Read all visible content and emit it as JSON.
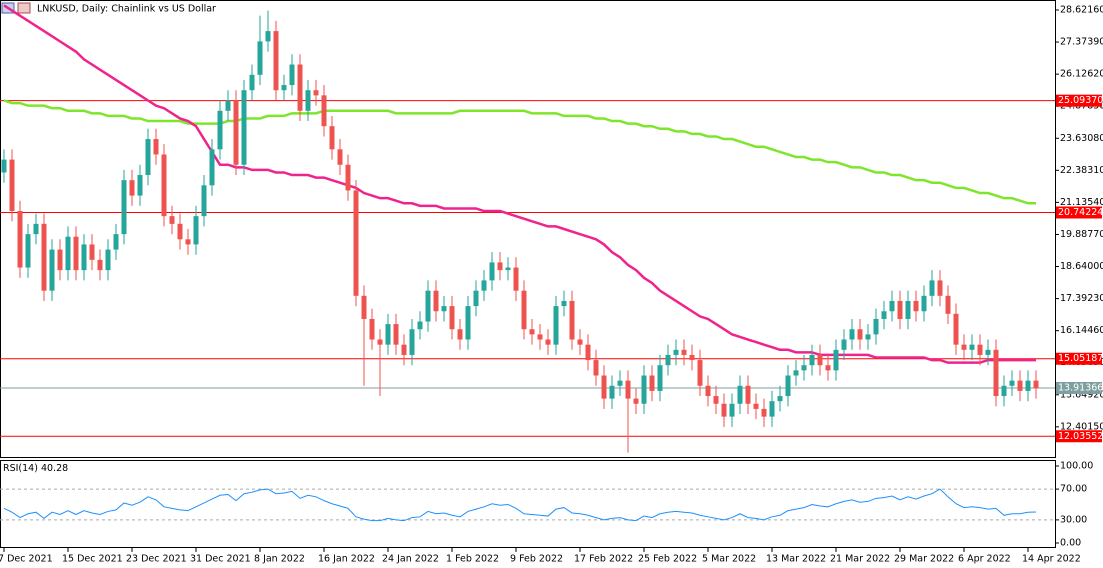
{
  "chart_data": [
    {
      "type": "candlestick",
      "title": "LNKUSD, Daily:  Chainlink vs US Dollar",
      "up_color": "#26a69a",
      "down_color": "#ef5350",
      "categories": [
        "7 Dec 2021",
        null,
        null,
        null,
        null,
        null,
        null,
        null,
        "15 Dec 2021",
        null,
        null,
        null,
        null,
        null,
        null,
        null,
        "23 Dec 2021",
        null,
        null,
        null,
        null,
        null,
        null,
        null,
        "31 Dec 2021",
        null,
        null,
        null,
        null,
        null,
        null,
        null,
        "8 Jan 2022",
        null,
        null,
        null,
        null,
        null,
        null,
        null,
        "16 Jan 2022",
        null,
        null,
        null,
        null,
        null,
        null,
        null,
        "24 Jan 2022",
        null,
        null,
        null,
        null,
        null,
        null,
        null,
        "1 Feb 2022",
        null,
        null,
        null,
        null,
        null,
        null,
        null,
        "9 Feb 2022",
        null,
        null,
        null,
        null,
        null,
        null,
        null,
        "17 Feb 2022",
        null,
        null,
        null,
        null,
        null,
        null,
        null,
        "25 Feb 2022",
        null,
        null,
        null,
        null,
        null,
        null,
        null,
        "5 Mar 2022",
        null,
        null,
        null,
        null,
        null,
        null,
        null,
        "13 Mar 2022",
        null,
        null,
        null,
        null,
        null,
        null,
        null,
        "21 Mar 2022",
        null,
        null,
        null,
        null,
        null,
        null,
        null,
        "29 Mar 2022",
        null,
        null,
        null,
        null,
        null,
        null,
        null,
        "6 Apr 2022",
        null,
        null,
        null,
        null,
        null,
        null,
        null,
        "14 Apr 2022",
        null
      ],
      "open": [
        22.3,
        22.8,
        20.8,
        18.6,
        19.9,
        20.3,
        17.7,
        19.3,
        18.5,
        19.8,
        18.5,
        19.5,
        18.9,
        18.5,
        19.3,
        19.9,
        22.0,
        21.4,
        22.2,
        23.6,
        23.0,
        20.6,
        20.3,
        19.7,
        19.5,
        20.6,
        21.8,
        23.2,
        24.7,
        25.1,
        22.6,
        25.5,
        26.1,
        27.4,
        27.8,
        25.5,
        25.7,
        26.5,
        24.7,
        25.5,
        25.3,
        24.1,
        23.2,
        22.6,
        21.6,
        17.5,
        16.6,
        15.8,
        15.6,
        16.4,
        15.6,
        15.2,
        16.2,
        16.5,
        17.7,
        16.9,
        17.1,
        16.2,
        15.8,
        17.1,
        17.7,
        18.1,
        18.8,
        18.5,
        18.6,
        17.7,
        16.2,
        16.0,
        15.8,
        15.6,
        17.1,
        17.3,
        15.8,
        15.6,
        15.0,
        14.4,
        13.5,
        14.0,
        14.2,
        13.5,
        13.3,
        14.4,
        13.8,
        14.8,
        15.2,
        15.4,
        15.2,
        15.0,
        14.0,
        13.6,
        13.3,
        12.8,
        13.3,
        14.0,
        13.3,
        13.1,
        12.8,
        13.4,
        13.6,
        14.4,
        14.6,
        14.8,
        15.2,
        14.8,
        14.6,
        15.4,
        15.8,
        16.2,
        15.8,
        16.0,
        16.6,
        16.9,
        17.3,
        16.6,
        17.3,
        16.9,
        17.5,
        18.1,
        17.5,
        16.8,
        15.6,
        15.4,
        15.6,
        15.2,
        15.4,
        13.6,
        14.0,
        14.2,
        13.8,
        14.2
      ],
      "high": [
        23.2,
        23.2,
        21.2,
        20.3,
        20.7,
        20.7,
        19.7,
        19.7,
        20.2,
        20.2,
        19.9,
        19.9,
        19.3,
        19.7,
        20.3,
        22.4,
        22.4,
        22.6,
        24.0,
        24.0,
        23.4,
        21.0,
        20.7,
        20.1,
        21.0,
        22.2,
        23.6,
        25.1,
        25.5,
        25.5,
        25.9,
        26.5,
        28.4,
        28.6,
        28.2,
        26.1,
        26.9,
        26.9,
        25.9,
        25.9,
        25.7,
        24.5,
        23.6,
        23.0,
        22.0,
        17.9,
        17.0,
        16.2,
        16.8,
        16.8,
        16.0,
        16.6,
        16.9,
        18.1,
        18.1,
        17.5,
        17.5,
        16.6,
        17.5,
        18.1,
        18.5,
        19.2,
        19.2,
        19.0,
        19.0,
        18.1,
        16.6,
        16.4,
        16.2,
        17.5,
        17.7,
        17.7,
        16.2,
        16.0,
        15.4,
        14.8,
        14.4,
        14.6,
        14.6,
        13.9,
        14.8,
        14.8,
        15.2,
        15.6,
        15.8,
        15.8,
        15.6,
        15.4,
        14.4,
        14.0,
        13.7,
        13.7,
        14.4,
        14.4,
        13.7,
        13.5,
        13.8,
        14.0,
        14.8,
        15.0,
        15.2,
        15.6,
        15.6,
        15.2,
        15.8,
        16.2,
        16.6,
        16.6,
        16.4,
        17.0,
        17.3,
        17.7,
        17.7,
        17.7,
        17.7,
        17.9,
        18.5,
        18.5,
        17.9,
        17.2,
        16.0,
        16.0,
        16.0,
        15.8,
        15.8,
        14.4,
        14.6,
        14.6,
        14.6,
        14.6
      ],
      "low": [
        21.9,
        20.4,
        18.2,
        18.2,
        19.5,
        17.3,
        17.3,
        18.1,
        18.1,
        18.1,
        18.1,
        18.5,
        18.1,
        18.1,
        18.9,
        19.5,
        21.0,
        21.0,
        21.8,
        22.6,
        20.2,
        19.9,
        19.3,
        19.1,
        19.1,
        20.2,
        21.4,
        22.8,
        24.3,
        22.2,
        22.2,
        25.1,
        25.7,
        27.0,
        25.1,
        25.1,
        25.3,
        24.3,
        24.3,
        24.9,
        23.7,
        22.8,
        22.2,
        21.2,
        17.1,
        14.0,
        15.4,
        13.6,
        15.2,
        15.2,
        14.8,
        14.8,
        15.8,
        16.1,
        16.5,
        16.5,
        15.8,
        15.4,
        15.4,
        16.7,
        17.3,
        17.7,
        18.1,
        18.1,
        17.3,
        15.8,
        15.6,
        15.4,
        15.2,
        15.2,
        16.7,
        15.4,
        15.2,
        14.6,
        14.0,
        13.1,
        13.1,
        13.6,
        11.4,
        12.9,
        12.9,
        13.4,
        13.4,
        14.4,
        14.8,
        14.8,
        14.6,
        13.6,
        13.2,
        12.9,
        12.4,
        12.4,
        12.9,
        12.9,
        12.7,
        12.4,
        12.4,
        13.0,
        13.2,
        14.0,
        14.2,
        14.4,
        14.4,
        14.2,
        14.2,
        15.0,
        15.4,
        15.4,
        15.4,
        15.6,
        16.2,
        16.5,
        16.2,
        16.2,
        16.5,
        16.5,
        17.1,
        17.1,
        16.4,
        15.2,
        15.0,
        15.0,
        14.8,
        14.8,
        13.2,
        13.2,
        13.6,
        13.4,
        13.4,
        13.5
      ],
      "close": [
        22.8,
        20.8,
        18.6,
        19.9,
        20.3,
        17.7,
        19.3,
        18.5,
        19.8,
        18.5,
        19.5,
        18.9,
        18.5,
        19.3,
        19.9,
        22.0,
        21.4,
        22.2,
        23.6,
        23.0,
        20.6,
        20.3,
        19.7,
        19.5,
        20.6,
        21.8,
        23.2,
        24.7,
        25.1,
        22.6,
        25.5,
        26.1,
        27.4,
        27.8,
        25.5,
        25.7,
        26.5,
        24.7,
        25.5,
        25.3,
        24.1,
        23.2,
        22.6,
        21.6,
        17.5,
        16.6,
        15.8,
        15.6,
        16.4,
        15.6,
        15.2,
        16.2,
        16.5,
        17.7,
        16.9,
        17.1,
        16.2,
        15.8,
        17.1,
        17.7,
        18.1,
        18.8,
        18.5,
        18.6,
        17.7,
        16.2,
        16.0,
        15.8,
        15.6,
        17.1,
        17.3,
        15.8,
        15.6,
        15.0,
        14.4,
        13.5,
        14.0,
        14.2,
        13.5,
        13.3,
        14.4,
        13.8,
        14.8,
        15.2,
        15.4,
        15.2,
        15.0,
        14.0,
        13.6,
        13.3,
        12.8,
        13.3,
        14.0,
        13.3,
        13.1,
        12.8,
        13.4,
        13.6,
        14.4,
        14.6,
        14.8,
        15.2,
        14.8,
        14.6,
        15.4,
        15.8,
        16.2,
        15.8,
        16.0,
        16.6,
        16.9,
        17.3,
        16.6,
        17.3,
        16.9,
        17.5,
        18.1,
        17.5,
        16.8,
        15.6,
        15.4,
        15.6,
        15.2,
        15.4,
        13.6,
        14.0,
        14.2,
        13.8,
        14.2,
        13.9
      ],
      "overlays": [
        {
          "color": "#7fe52a",
          "values": [
            25.1,
            25.0,
            25.0,
            24.9,
            24.9,
            24.9,
            24.8,
            24.8,
            24.7,
            24.7,
            24.7,
            24.6,
            24.6,
            24.5,
            24.5,
            24.5,
            24.4,
            24.4,
            24.3,
            24.3,
            24.3,
            24.3,
            24.3,
            24.2,
            24.2,
            24.2,
            24.2,
            24.2,
            24.3,
            24.3,
            24.4,
            24.4,
            24.4,
            24.5,
            24.5,
            24.5,
            24.6,
            24.6,
            24.6,
            24.6,
            24.7,
            24.7,
            24.7,
            24.7,
            24.7,
            24.7,
            24.7,
            24.7,
            24.7,
            24.6,
            24.6,
            24.6,
            24.6,
            24.6,
            24.6,
            24.6,
            24.6,
            24.7,
            24.7,
            24.7,
            24.7,
            24.7,
            24.7,
            24.7,
            24.7,
            24.7,
            24.6,
            24.6,
            24.6,
            24.6,
            24.5,
            24.5,
            24.5,
            24.5,
            24.4,
            24.4,
            24.3,
            24.3,
            24.2,
            24.2,
            24.1,
            24.1,
            24.0,
            24.0,
            23.9,
            23.9,
            23.8,
            23.8,
            23.7,
            23.7,
            23.6,
            23.6,
            23.5,
            23.4,
            23.3,
            23.3,
            23.2,
            23.1,
            23.0,
            22.9,
            22.9,
            22.8,
            22.8,
            22.7,
            22.7,
            22.6,
            22.5,
            22.5,
            22.4,
            22.3,
            22.3,
            22.2,
            22.2,
            22.1,
            22.0,
            22.0,
            21.9,
            21.9,
            21.8,
            21.7,
            21.7,
            21.6,
            21.5,
            21.5,
            21.4,
            21.3,
            21.3,
            21.2,
            21.1,
            21.1
          ]
        },
        {
          "color": "#f0238c",
          "values": [
            28.8,
            28.6,
            28.4,
            28.2,
            28.0,
            27.8,
            27.6,
            27.4,
            27.2,
            27.0,
            26.7,
            26.5,
            26.3,
            26.1,
            25.9,
            25.7,
            25.5,
            25.3,
            25.1,
            24.9,
            24.8,
            24.6,
            24.4,
            24.3,
            24.1,
            23.6,
            23.1,
            22.6,
            22.6,
            22.5,
            22.5,
            22.4,
            22.4,
            22.4,
            22.3,
            22.3,
            22.2,
            22.2,
            22.2,
            22.1,
            22.1,
            22.0,
            21.9,
            21.8,
            21.7,
            21.5,
            21.4,
            21.3,
            21.3,
            21.2,
            21.1,
            21.1,
            21.0,
            21.0,
            21.0,
            20.9,
            20.9,
            20.9,
            20.9,
            20.9,
            20.8,
            20.8,
            20.8,
            20.7,
            20.6,
            20.5,
            20.4,
            20.3,
            20.2,
            20.2,
            20.1,
            20.0,
            19.9,
            19.8,
            19.7,
            19.5,
            19.2,
            19.0,
            18.7,
            18.5,
            18.2,
            18.0,
            17.7,
            17.5,
            17.3,
            17.1,
            16.9,
            16.7,
            16.6,
            16.4,
            16.2,
            16.0,
            15.9,
            15.8,
            15.7,
            15.6,
            15.5,
            15.4,
            15.4,
            15.3,
            15.3,
            15.3,
            15.2,
            15.2,
            15.2,
            15.2,
            15.2,
            15.2,
            15.2,
            15.1,
            15.1,
            15.1,
            15.1,
            15.1,
            15.1,
            15.1,
            15.0,
            15.0,
            14.9,
            14.9,
            14.9,
            14.9,
            14.9,
            15.0,
            15.0,
            15.0,
            15.0,
            15.0,
            15.0,
            15.0
          ]
        }
      ],
      "levels": [
        {
          "value": 25.0937,
          "label": "25.09370",
          "color": "#ff0000"
        },
        {
          "value": 20.74224,
          "label": "20.74224",
          "color": "#ff0000"
        },
        {
          "value": 15.05187,
          "label": "15.05187",
          "color": "#ff0000"
        },
        {
          "value": 12.03552,
          "label": "12.03552",
          "color": "#ff0000"
        },
        {
          "value": 13.91366,
          "label": "13.91366",
          "color": "#7f9f9f"
        }
      ],
      "ylim": [
        11.19,
        29.01
      ],
      "yticks": [
        {
          "value": 28.6216,
          "label": "28.62160"
        },
        {
          "value": 27.3739,
          "label": "27.37390"
        },
        {
          "value": 26.1262,
          "label": "26.12620"
        },
        {
          "value": 24.8785,
          "label": "24.87850"
        },
        {
          "value": 23.6308,
          "label": "23.63080"
        },
        {
          "value": 22.3831,
          "label": "22.38310"
        },
        {
          "value": 21.1354,
          "label": "21.13540"
        },
        {
          "value": 19.8877,
          "label": "19.88770"
        },
        {
          "value": 18.64,
          "label": "18.64000"
        },
        {
          "value": 17.3923,
          "label": "17.39230"
        },
        {
          "value": 16.1446,
          "label": "16.14460"
        },
        {
          "value": 14.8969,
          "label": "14.89690"
        },
        {
          "value": 13.6492,
          "label": "13.64920"
        },
        {
          "value": 12.4015,
          "label": "12.40150"
        }
      ],
      "grid": false
    },
    {
      "type": "line",
      "title": "RSI(14)",
      "color": "#1e90ff",
      "values": [
        45,
        40,
        33,
        38,
        40,
        32,
        40,
        37,
        42,
        37,
        42,
        39,
        37,
        41,
        43,
        52,
        49,
        53,
        60,
        56,
        47,
        45,
        43,
        42,
        47,
        52,
        57,
        62,
        63,
        55,
        64,
        66,
        69,
        70,
        64,
        65,
        67,
        58,
        62,
        60,
        55,
        51,
        48,
        45,
        34,
        31,
        29,
        29,
        32,
        30,
        29,
        33,
        34,
        41,
        38,
        39,
        36,
        34,
        41,
        44,
        47,
        51,
        49,
        50,
        45,
        38,
        37,
        36,
        35,
        44,
        46,
        39,
        38,
        36,
        33,
        30,
        32,
        33,
        30,
        29,
        35,
        33,
        38,
        40,
        41,
        40,
        39,
        36,
        34,
        32,
        30,
        33,
        38,
        33,
        32,
        30,
        34,
        36,
        42,
        44,
        46,
        50,
        48,
        47,
        51,
        54,
        56,
        53,
        54,
        58,
        59,
        61,
        56,
        60,
        57,
        61,
        64,
        70,
        60,
        51,
        46,
        47,
        46,
        44,
        45,
        36,
        38,
        38,
        40,
        40.28
      ],
      "levels": [
        70,
        30
      ],
      "ylim": [
        -6.5,
        107.8
      ],
      "yticks": [
        {
          "value": 100,
          "label": "100.00"
        },
        {
          "value": 70,
          "label": "70.00"
        },
        {
          "value": 30,
          "label": "30.00"
        },
        {
          "value": 0,
          "label": "0.00"
        }
      ],
      "grid": false
    }
  ]
}
